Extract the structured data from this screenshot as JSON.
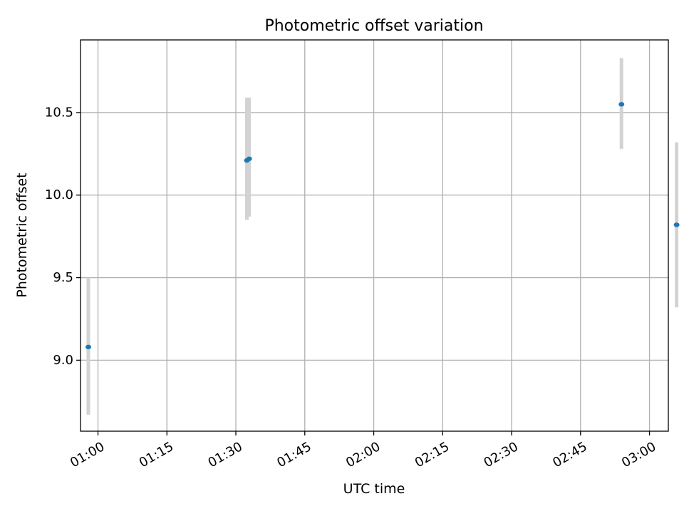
{
  "chart_data": {
    "type": "scatter",
    "title": "Photometric offset variation",
    "xlabel": "UTC time",
    "ylabel": "Photometric offset",
    "x_tick_labels": [
      "01:00",
      "01:15",
      "01:30",
      "01:45",
      "02:00",
      "02:15",
      "02:30",
      "02:45",
      "03:00"
    ],
    "x_ticks": [
      "01:00",
      "01:15",
      "01:30",
      "01:45",
      "02:00",
      "02:15",
      "02:30",
      "02:45",
      "03:00"
    ],
    "y_tick_labels": [
      "9.0",
      "9.5",
      "10.0",
      "10.5"
    ],
    "y_ticks": [
      9.0,
      9.5,
      10.0,
      10.5
    ],
    "xlim": [
      "00:56:12",
      "03:04:06"
    ],
    "ylim": [
      8.57,
      10.94
    ],
    "grid": true,
    "series": [
      {
        "points": [
          {
            "x": "00:57:54",
            "y": 9.08,
            "err_low": 8.67,
            "err_high": 9.5
          },
          {
            "x": "01:32:24",
            "y": 10.21,
            "err_low": 9.85,
            "err_high": 10.59
          },
          {
            "x": "01:32:54",
            "y": 10.22,
            "err_low": 9.87,
            "err_high": 10.59
          },
          {
            "x": "02:53:54",
            "y": 10.55,
            "err_low": 10.28,
            "err_high": 10.83
          },
          {
            "x": "03:05:54",
            "y": 9.82,
            "err_low": 9.32,
            "err_high": 10.32
          }
        ]
      }
    ]
  },
  "colors": {
    "marker": "#1f77b4",
    "errorbar": "#d3d3d3",
    "grid": "#b0b0b0",
    "axes": "#000000"
  }
}
